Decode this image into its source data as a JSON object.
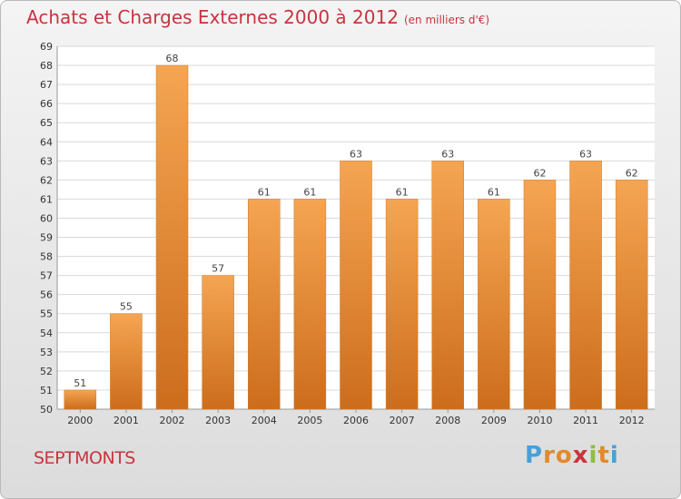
{
  "chart_data": {
    "type": "bar",
    "title": "Achats et Charges Externes 2000 à 2012",
    "unit_label": "(en milliers d'€)",
    "categories": [
      "2000",
      "2001",
      "2002",
      "2003",
      "2004",
      "2005",
      "2006",
      "2007",
      "2008",
      "2009",
      "2010",
      "2011",
      "2012"
    ],
    "values": [
      51,
      55,
      68,
      57,
      61,
      61,
      63,
      61,
      63,
      61,
      62,
      63,
      62
    ],
    "value_labels": [
      "51",
      "55",
      "68",
      "57",
      "61",
      "61",
      "63",
      "61",
      "63",
      "61",
      "62",
      "63",
      "62"
    ],
    "ylim": [
      50,
      69
    ],
    "yticks": [
      "50",
      "51",
      "52",
      "53",
      "54",
      "55",
      "56",
      "57",
      "58",
      "59",
      "60",
      "61",
      "62",
      "63",
      "64",
      "65",
      "66",
      "67",
      "68",
      "69"
    ],
    "xlabel": "",
    "ylabel": "",
    "grid": true,
    "bar_color": "#e8862d"
  },
  "footer": {
    "city": "SEPTMONTS",
    "brand_letters": [
      "P",
      "r",
      "o",
      "x",
      "i",
      "t",
      "i"
    ],
    "brand_colors": [
      "#4a9fd8",
      "#e28a2b",
      "#e28a2b",
      "#c8343f",
      "#8fbf3f",
      "#e28a2b",
      "#4a9fd8"
    ]
  }
}
